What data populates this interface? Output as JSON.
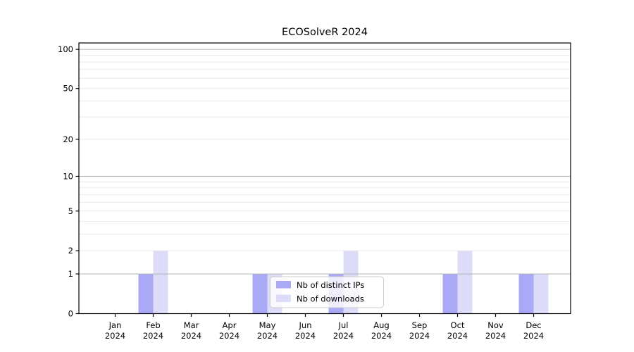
{
  "chart_data": {
    "type": "bar",
    "title": "ECOSolveR 2024",
    "categories": [
      "Jan",
      "Feb",
      "Mar",
      "Apr",
      "May",
      "Jun",
      "Jul",
      "Aug",
      "Sep",
      "Oct",
      "Nov",
      "Dec"
    ],
    "x_tick_year": "2024",
    "series": [
      {
        "name": "Nb of distinct IPs",
        "color": "#a9a9f5",
        "values": [
          0,
          1,
          0,
          0,
          1,
          0,
          1,
          0,
          0,
          1,
          0,
          1
        ]
      },
      {
        "name": "Nb of downloads",
        "color": "#dcdcf9",
        "values": [
          0,
          2,
          0,
          0,
          1,
          0,
          2,
          0,
          0,
          2,
          0,
          1
        ]
      }
    ],
    "y_scale": "log1p",
    "ylim": [
      0,
      112
    ],
    "y_ticks": [
      "0",
      "1",
      "2",
      "5",
      "10",
      "20",
      "50",
      "100"
    ],
    "y_tick_values": [
      0,
      1,
      2,
      5,
      10,
      20,
      50,
      100
    ],
    "y_major_gridlines": [
      1,
      10,
      100
    ],
    "y_minor_gridlines": [
      2,
      3,
      4,
      5,
      6,
      7,
      8,
      9,
      20,
      30,
      40,
      50,
      60,
      70,
      80,
      90
    ],
    "grid": true,
    "legend_position": "lower center"
  },
  "colors": {
    "major_grid": "#b2b2b2",
    "minor_grid": "#e9e9e9",
    "axis": "#000000",
    "legend_border": "#cccccc",
    "legend_background": "rgba(255,255,255,0.8)"
  }
}
